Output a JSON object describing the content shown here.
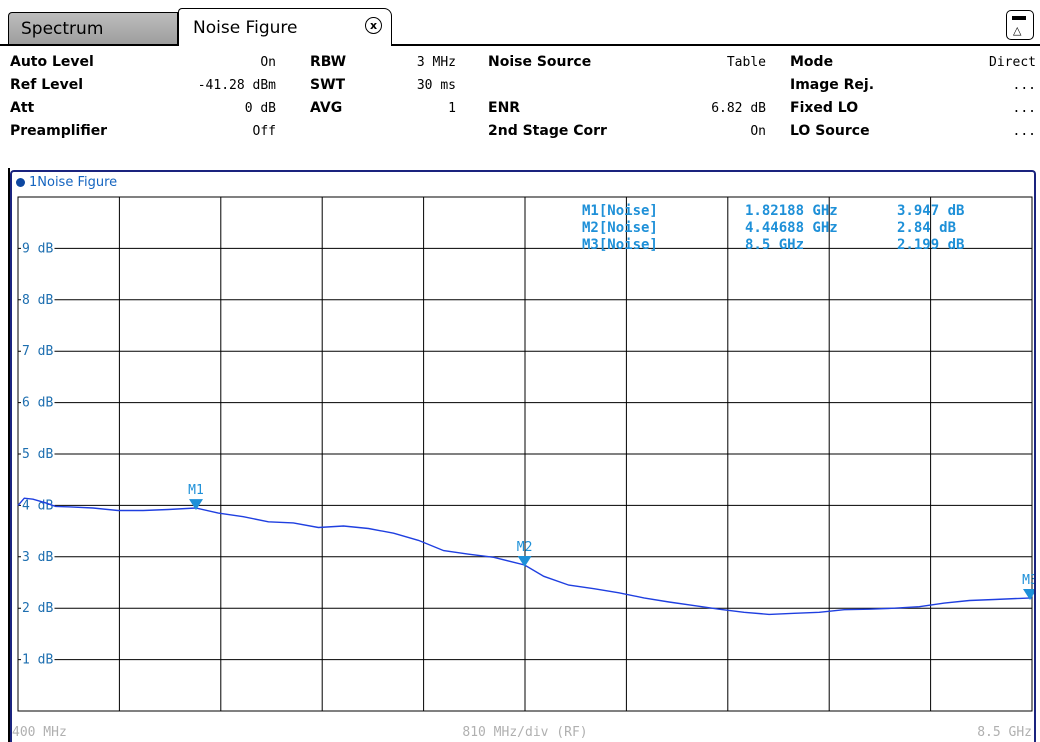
{
  "tabs": [
    {
      "label": "Spectrum",
      "active": false
    },
    {
      "label": "Noise Figure",
      "active": true
    }
  ],
  "close_icon": "x-circle-icon",
  "overview_icon": "overview-icon",
  "settings": {
    "col1": [
      {
        "label": "Auto Level",
        "value": "On"
      },
      {
        "label": "Ref Level",
        "value": "-41.28 dBm"
      },
      {
        "label": "Att",
        "value": "0 dB"
      },
      {
        "label": "Preamplifier",
        "value": "Off"
      }
    ],
    "col2": [
      {
        "label": "RBW",
        "value": "3 MHz"
      },
      {
        "label": "SWT",
        "value": "30 ms"
      },
      {
        "label": "AVG",
        "value": "1"
      }
    ],
    "col3": [
      {
        "label": "Noise Source",
        "value": "Table"
      },
      {
        "label": "",
        "value": ""
      },
      {
        "label": "ENR",
        "value": "6.82 dB"
      },
      {
        "label": "2nd Stage Corr",
        "value": "On"
      }
    ],
    "col4": [
      {
        "label": "Mode",
        "value": "Direct"
      },
      {
        "label": "Image Rej.",
        "value": "..."
      },
      {
        "label": "Fixed LO",
        "value": "..."
      },
      {
        "label": "LO Source",
        "value": "..."
      }
    ]
  },
  "trace_title": "1Noise Figure",
  "colors": {
    "trace": "#1f3fe0",
    "marker": "#1e90d8",
    "axis_text": "#1e6fb0",
    "footer_text": "#b0b0b0"
  },
  "chart_data": {
    "type": "line",
    "xlabel": "810 MHz/div (RF)",
    "x_start_label": "400 MHz",
    "x_stop_label": "8.5 GHz",
    "xlim": [
      400,
      8500
    ],
    "x_unit": "MHz",
    "ylim": [
      0,
      10
    ],
    "y_ticks": [
      1,
      2,
      3,
      4,
      5,
      6,
      7,
      8,
      9
    ],
    "y_tick_labels": [
      "1 dB",
      "2 dB",
      "3 dB",
      "4 dB",
      "5 dB",
      "6 dB",
      "7 dB",
      "8 dB",
      "9 dB"
    ],
    "grid": true,
    "series": [
      {
        "x": [
          400,
          450,
          520,
          620,
          700,
          820,
          1000,
          1200,
          1400,
          1600,
          1820,
          2000,
          2200,
          2400,
          2600,
          2800,
          3000,
          3200,
          3400,
          3600,
          3800,
          4000,
          4200,
          4447,
          4600,
          4800,
          5000,
          5200,
          5400,
          5600,
          5800,
          6000,
          6200,
          6400,
          6600,
          6800,
          7000,
          7200,
          7400,
          7600,
          7800,
          8000,
          8200,
          8400,
          8500
        ],
        "y": [
          4.0,
          4.14,
          4.12,
          4.05,
          3.98,
          3.97,
          3.95,
          3.9,
          3.9,
          3.92,
          3.95,
          3.85,
          3.78,
          3.68,
          3.66,
          3.57,
          3.6,
          3.55,
          3.46,
          3.32,
          3.12,
          3.05,
          2.99,
          2.84,
          2.62,
          2.45,
          2.38,
          2.3,
          2.2,
          2.12,
          2.05,
          1.98,
          1.92,
          1.88,
          1.9,
          1.92,
          1.97,
          1.98,
          2.0,
          2.03,
          2.1,
          2.15,
          2.17,
          2.19,
          2.2
        ]
      }
    ],
    "markers": [
      {
        "name": "M1",
        "label": "M1[Noise]",
        "x": 1821.88,
        "y": 3.947,
        "x_text": "1.82188 GHz",
        "y_text": "3.947 dB"
      },
      {
        "name": "M2",
        "label": "M2[Noise]",
        "x": 4446.88,
        "y": 2.84,
        "x_text": "4.44688 GHz",
        "y_text": "2.84 dB"
      },
      {
        "name": "M3",
        "label": "M3[Noise]",
        "x": 8500,
        "y": 2.199,
        "x_text": "8.5 GHz",
        "y_text": "2.199 dB"
      }
    ]
  }
}
